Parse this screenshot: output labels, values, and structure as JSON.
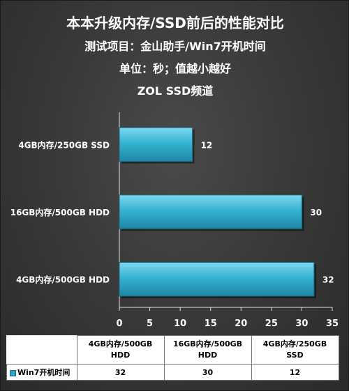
{
  "titles": {
    "line1": "本本升级内存/SSD前后的性能对比",
    "line2": "测试项目：金山助手/Win7开机时间",
    "line3": "单位：秒；值越小越好",
    "line4": "ZOL SSD频道"
  },
  "chart_data": {
    "type": "bar",
    "orientation": "horizontal",
    "categories": [
      "4GB内存/250GB SSD",
      "16GB内存/500GB HDD",
      "4GB内存/500GB HDD"
    ],
    "series": [
      {
        "name": "Win7开机时间",
        "values": [
          12,
          30,
          32
        ]
      }
    ],
    "xlim": [
      0,
      35
    ],
    "x_ticks": [
      0,
      5,
      10,
      15,
      20,
      25,
      30,
      35
    ],
    "bar_color": "#35b3d3",
    "grid": false
  },
  "data_table": {
    "columns": [
      {
        "line1": "4GB内存/500GB",
        "line2": "HDD"
      },
      {
        "line1": "16GB内存/500GB",
        "line2": "HDD"
      },
      {
        "line1": "4GB内存/250GB",
        "line2": "SSD"
      }
    ],
    "row_label": "Win7开机时间",
    "values": [
      "32",
      "30",
      "12"
    ]
  }
}
